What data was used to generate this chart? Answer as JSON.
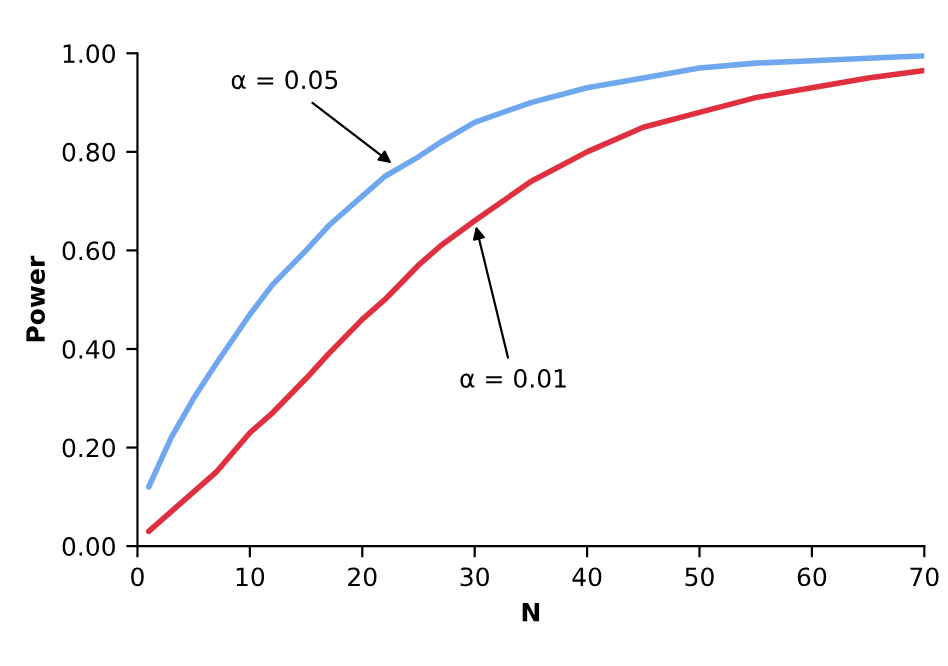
{
  "chart_data": {
    "type": "line",
    "xlabel": "N",
    "ylabel": "Power",
    "x": [
      1,
      3,
      5,
      7,
      10,
      12,
      15,
      17,
      20,
      22,
      25,
      27,
      30,
      35,
      40,
      45,
      50,
      55,
      60,
      65,
      70
    ],
    "series": [
      {
        "color": "#6fa8ef",
        "values": [
          0.12,
          0.22,
          0.3,
          0.37,
          0.47,
          0.53,
          0.6,
          0.65,
          0.71,
          0.75,
          0.79,
          0.82,
          0.86,
          0.9,
          0.93,
          0.95,
          0.97,
          0.98,
          0.985,
          0.99,
          0.995
        ]
      },
      {
        "color": "#e03040",
        "values": [
          0.03,
          0.07,
          0.11,
          0.15,
          0.23,
          0.27,
          0.34,
          0.39,
          0.46,
          0.5,
          0.57,
          0.61,
          0.66,
          0.74,
          0.8,
          0.85,
          0.88,
          0.91,
          0.93,
          0.95,
          0.965
        ]
      }
    ],
    "xlim": [
      0,
      70
    ],
    "xticks": [
      0,
      10,
      20,
      30,
      40,
      50,
      60,
      70
    ],
    "ylim": [
      0,
      1
    ],
    "yticks": [
      {
        "value": 0,
        "label": "0.00"
      },
      {
        "value": 0.2,
        "label": "0.20"
      },
      {
        "value": 0.4,
        "label": "0.40"
      },
      {
        "value": 0.6,
        "label": "0.60"
      },
      {
        "value": 0.8,
        "label": "0.80"
      },
      {
        "value": 1,
        "label": "1.00"
      }
    ],
    "grid": false,
    "legend": false,
    "annotations": [
      {
        "text": "α = 0.05",
        "x": 23,
        "y": 0.77
      },
      {
        "text": "α = 0.01",
        "x": 30,
        "y": 0.66
      }
    ]
  }
}
